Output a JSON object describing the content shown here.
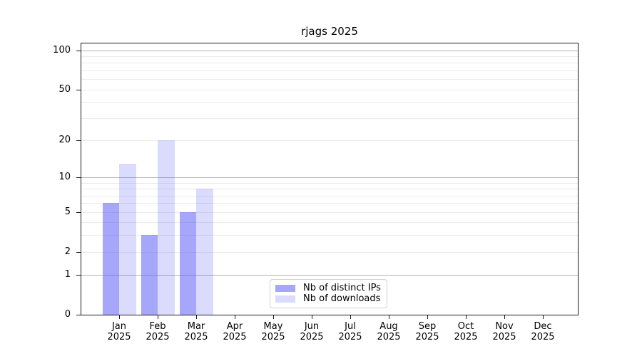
{
  "chart_data": {
    "type": "bar",
    "title": "rjags 2025",
    "year": "2025",
    "categories": [
      "Jan",
      "Feb",
      "Mar",
      "Apr",
      "May",
      "Jun",
      "Jul",
      "Aug",
      "Sep",
      "Oct",
      "Nov",
      "Dec"
    ],
    "series": [
      {
        "name": "Nb of distinct IPs",
        "color": "rgba(92,92,245,0.55)",
        "values": [
          6,
          3,
          5,
          0,
          0,
          0,
          0,
          0,
          0,
          0,
          0,
          0
        ]
      },
      {
        "name": "Nb of downloads",
        "color": "rgba(92,92,245,0.22)",
        "values": [
          13,
          20,
          8,
          0,
          0,
          0,
          0,
          0,
          0,
          0,
          0,
          0
        ]
      }
    ],
    "y_axis": {
      "scale": "log1p",
      "ticks": [
        0,
        1,
        2,
        5,
        10,
        20,
        50,
        100
      ],
      "range": [
        0,
        113
      ],
      "gridlines_major": [
        1,
        10,
        100
      ],
      "gridlines_minor": [
        2,
        3,
        4,
        5,
        6,
        7,
        8,
        9,
        20,
        30,
        40,
        50,
        60,
        70,
        80,
        90
      ]
    },
    "legend": {
      "position": "lower center"
    },
    "grid": true
  },
  "colors": {
    "grid_major": "#b3b3b3",
    "grid_minor": "#ebebeb",
    "spine": "#1a1a1a",
    "text": "#000000",
    "background": "#ffffff"
  }
}
